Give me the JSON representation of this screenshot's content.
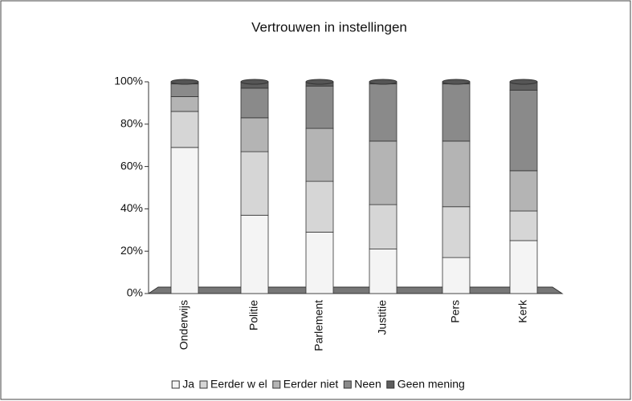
{
  "chart_data": {
    "type": "stacked_bar",
    "title": "Vertrouwen in instellingen",
    "categories": [
      "Onderwijs",
      "Politie",
      "Parlement",
      "Justitie",
      "Pers",
      "Kerk"
    ],
    "series": [
      {
        "name": "Ja",
        "color": "#f4f4f4",
        "values": [
          69,
          37,
          29,
          21,
          17,
          25
        ]
      },
      {
        "name": "Eerder w el",
        "color": "#d6d6d6",
        "values": [
          17,
          30,
          24,
          21,
          24,
          14
        ]
      },
      {
        "name": "Eerder niet",
        "color": "#b4b4b4",
        "values": [
          7,
          16,
          25,
          30,
          31,
          19
        ]
      },
      {
        "name": "Neen",
        "color": "#8a8a8a",
        "values": [
          6,
          14,
          20,
          27,
          27,
          38
        ]
      },
      {
        "name": "Geen mening",
        "color": "#5e5e5e",
        "values": [
          1,
          3,
          2,
          1,
          1,
          4
        ]
      }
    ],
    "ylim": [
      0,
      100
    ],
    "yticks": [
      {
        "value": 0,
        "label": "0%"
      },
      {
        "value": 20,
        "label": "20%"
      },
      {
        "value": 40,
        "label": "40%"
      },
      {
        "value": 60,
        "label": "60%"
      },
      {
        "value": 80,
        "label": "80%"
      },
      {
        "value": 100,
        "label": "100%"
      }
    ],
    "legend": "bottom"
  }
}
